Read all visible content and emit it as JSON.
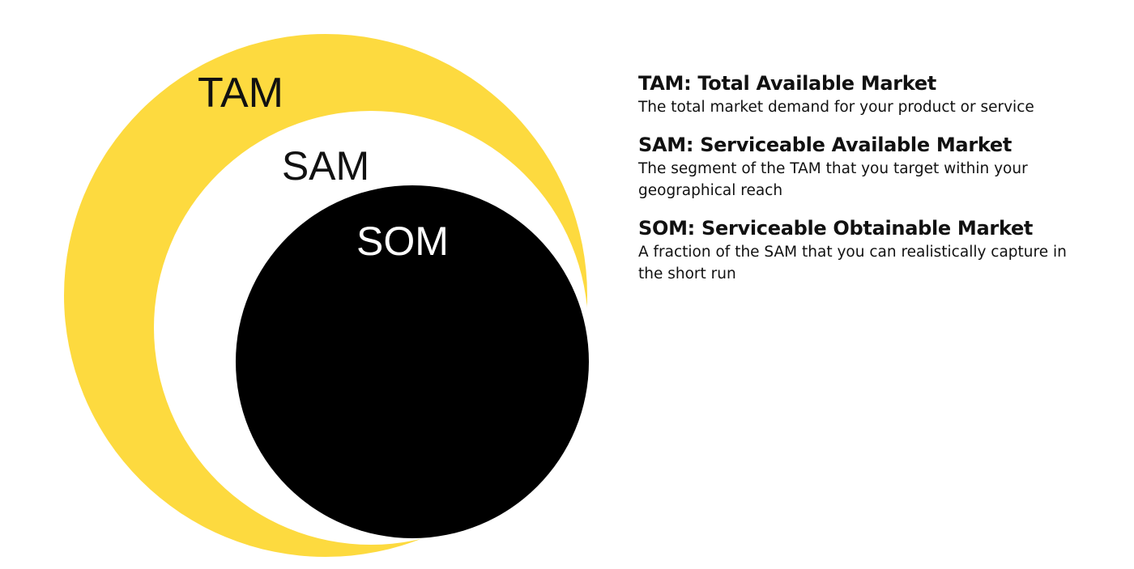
{
  "colors": {
    "tam": "#FDDA3F",
    "sam": "#FFFFFF",
    "som": "#000000",
    "text_dark": "#111111",
    "text_light": "#FFFFFF"
  },
  "diagram": {
    "tam_label": "TAM",
    "sam_label": "SAM",
    "som_label": "SOM"
  },
  "legend": {
    "items": [
      {
        "title": "TAM: Total Available Market",
        "description": "The total market demand for your product or service"
      },
      {
        "title": "SAM: Serviceable Available Market",
        "description": "The segment of the TAM that you target within your geographical reach"
      },
      {
        "title": "SOM: Serviceable Obtainable Market",
        "description": "A fraction of the SAM that you can realistically capture in the short run"
      }
    ]
  }
}
